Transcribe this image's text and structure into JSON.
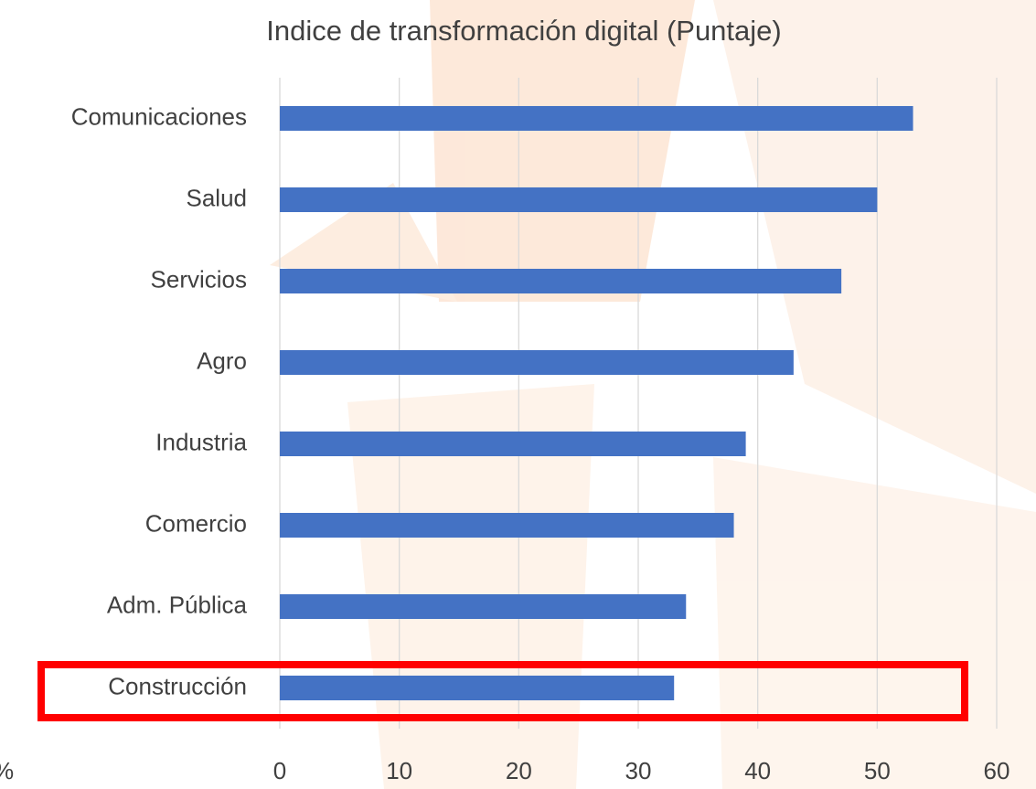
{
  "chart_data": {
    "type": "bar",
    "orientation": "horizontal",
    "title": "Indice de transformación digital (Puntaje)",
    "categories": [
      "Comunicaciones",
      "Salud",
      "Servicios",
      "Agro",
      "Industria",
      "Comercio",
      "Adm. Pública",
      "Construcción"
    ],
    "values": [
      53,
      50,
      47,
      43,
      39,
      38,
      34,
      33
    ],
    "color": "#4472c4",
    "xlim": [
      0,
      60
    ],
    "xticks": [
      0,
      10,
      20,
      30,
      40,
      50,
      60
    ],
    "grid": true,
    "annotation": "%"
  }
}
